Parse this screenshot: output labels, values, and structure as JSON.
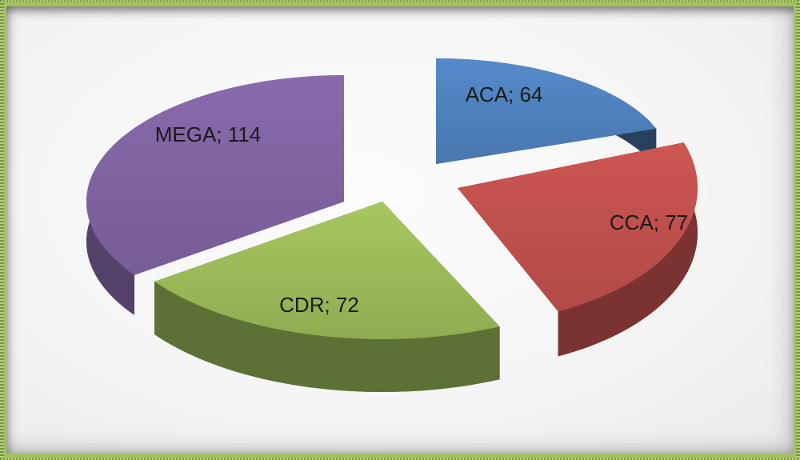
{
  "chart_data": {
    "type": "pie",
    "style": "3d-exploded-pie",
    "title": "",
    "labels": [
      "ACA",
      "CCA",
      "CDR",
      "MEGA"
    ],
    "values": [
      64,
      77,
      72,
      114
    ],
    "colors": [
      "#4f81bd",
      "#c0504d",
      "#9bbb59",
      "#8064a2"
    ],
    "data_labels": [
      "ACA; 64",
      "CCA; 77",
      "CDR; 72",
      "MEGA; 114"
    ],
    "label_color": "#1a1a1a",
    "start_angle_deg": 0,
    "direction": "clockwise",
    "legend": "none",
    "grid": false
  },
  "frame": {
    "border_color": "#a4c162",
    "texture_color": "#8fae4e",
    "background_color": "#f5f5f5"
  }
}
